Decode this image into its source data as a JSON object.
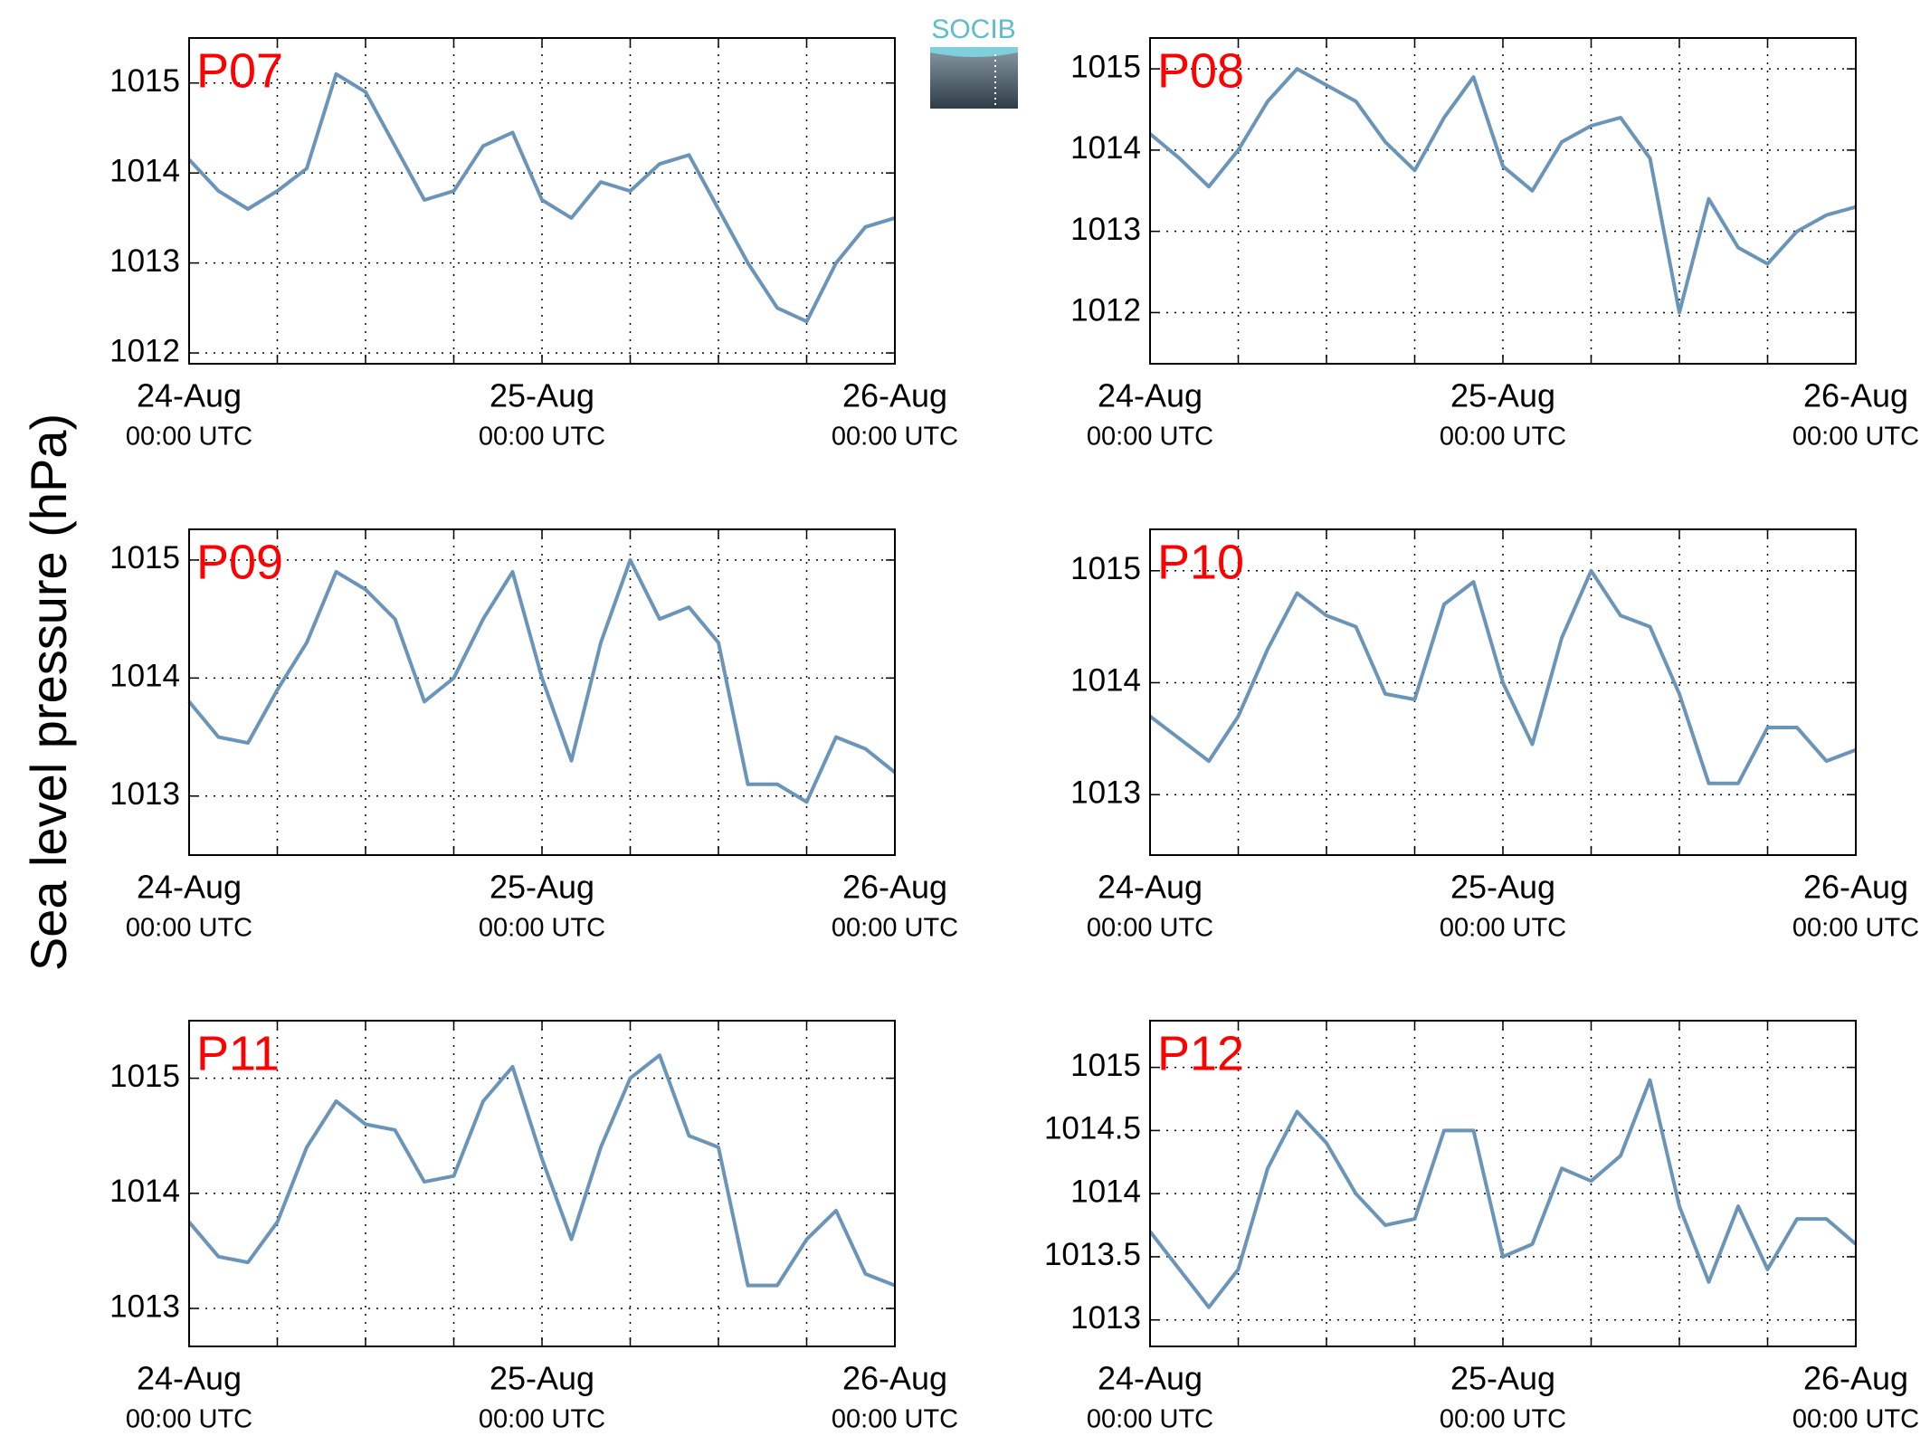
{
  "ylabel": "Sea level pressure (hPa)",
  "logo": "SOCIB",
  "chart_data": [
    {
      "type": "line",
      "title": "P07",
      "color": "#6a95b9",
      "grid": true,
      "x": [
        0,
        2,
        4,
        6,
        8,
        10,
        12,
        14,
        16,
        18,
        20,
        22,
        24,
        26,
        28,
        30,
        32,
        34,
        36,
        38,
        40,
        42,
        44,
        46,
        48
      ],
      "values": [
        1014.15,
        1013.8,
        1013.6,
        1013.8,
        1014.05,
        1015.1,
        1014.9,
        1014.3,
        1013.7,
        1013.8,
        1014.3,
        1014.45,
        1013.7,
        1013.5,
        1013.9,
        1013.8,
        1014.1,
        1014.2,
        1013.6,
        1013.0,
        1012.5,
        1012.35,
        1013.0,
        1013.4,
        1013.5
      ],
      "xlim": [
        0,
        48
      ],
      "ylim": [
        1011.88,
        1015.5
      ],
      "yticks": [
        1012,
        1013,
        1014,
        1015
      ],
      "xticks": [
        {
          "value": 0,
          "label": "24-Aug",
          "sublabel": "00:00 UTC"
        },
        {
          "value": 24,
          "label": "25-Aug",
          "sublabel": "00:00 UTC"
        },
        {
          "value": 48,
          "label": "26-Aug",
          "sublabel": "00:00 UTC"
        }
      ],
      "xminorticks": [
        6,
        12,
        18,
        30,
        36,
        42
      ]
    },
    {
      "type": "line",
      "title": "P08",
      "color": "#6a95b9",
      "grid": true,
      "x": [
        0,
        2,
        4,
        6,
        8,
        10,
        12,
        14,
        16,
        18,
        20,
        22,
        24,
        26,
        28,
        30,
        32,
        34,
        36,
        38,
        40,
        42,
        44,
        46,
        48
      ],
      "values": [
        1014.2,
        1013.9,
        1013.55,
        1014.0,
        1014.6,
        1015.0,
        1014.8,
        1014.6,
        1014.1,
        1013.75,
        1014.4,
        1014.9,
        1013.8,
        1013.5,
        1014.1,
        1014.3,
        1014.4,
        1013.9,
        1012.0,
        1013.4,
        1012.8,
        1012.6,
        1013.0,
        1013.2,
        1013.3
      ],
      "xlim": [
        0,
        48
      ],
      "ylim": [
        1011.37,
        1015.38
      ],
      "yticks": [
        1012,
        1013,
        1014,
        1015
      ],
      "xticks": [
        {
          "value": 0,
          "label": "24-Aug",
          "sublabel": "00:00 UTC"
        },
        {
          "value": 24,
          "label": "25-Aug",
          "sublabel": "00:00 UTC"
        },
        {
          "value": 48,
          "label": "26-Aug",
          "sublabel": "00:00 UTC"
        }
      ],
      "xminorticks": [
        6,
        12,
        18,
        30,
        36,
        42
      ]
    },
    {
      "type": "line",
      "title": "P09",
      "color": "#6a95b9",
      "grid": true,
      "x": [
        0,
        2,
        4,
        6,
        8,
        10,
        12,
        14,
        16,
        18,
        20,
        22,
        24,
        26,
        28,
        30,
        32,
        34,
        36,
        38,
        40,
        42,
        44,
        46,
        48
      ],
      "values": [
        1013.8,
        1013.5,
        1013.45,
        1013.9,
        1014.3,
        1014.9,
        1014.75,
        1014.5,
        1013.8,
        1014.0,
        1014.5,
        1014.9,
        1014.0,
        1013.3,
        1014.3,
        1015.0,
        1014.5,
        1014.6,
        1014.3,
        1013.1,
        1013.1,
        1012.95,
        1013.5,
        1013.4,
        1013.2
      ],
      "xlim": [
        0,
        48
      ],
      "ylim": [
        1012.5,
        1015.26
      ],
      "yticks": [
        1013,
        1014,
        1015
      ],
      "xticks": [
        {
          "value": 0,
          "label": "24-Aug",
          "sublabel": "00:00 UTC"
        },
        {
          "value": 24,
          "label": "25-Aug",
          "sublabel": "00:00 UTC"
        },
        {
          "value": 48,
          "label": "26-Aug",
          "sublabel": "00:00 UTC"
        }
      ],
      "xminorticks": [
        6,
        12,
        18,
        30,
        36,
        42
      ]
    },
    {
      "type": "line",
      "title": "P10",
      "color": "#6a95b9",
      "grid": true,
      "x": [
        0,
        2,
        4,
        6,
        8,
        10,
        12,
        14,
        16,
        18,
        20,
        22,
        24,
        26,
        28,
        30,
        32,
        34,
        36,
        38,
        40,
        42,
        44,
        46,
        48
      ],
      "values": [
        1013.7,
        1013.5,
        1013.3,
        1013.7,
        1014.3,
        1014.8,
        1014.6,
        1014.5,
        1013.9,
        1013.85,
        1014.7,
        1014.9,
        1014.0,
        1013.45,
        1014.4,
        1015.0,
        1014.6,
        1014.5,
        1013.9,
        1013.1,
        1013.1,
        1013.6,
        1013.6,
        1013.3,
        1013.4
      ],
      "xlim": [
        0,
        48
      ],
      "ylim": [
        1012.46,
        1015.37
      ],
      "yticks": [
        1013,
        1014,
        1015
      ],
      "xticks": [
        {
          "value": 0,
          "label": "24-Aug",
          "sublabel": "00:00 UTC"
        },
        {
          "value": 24,
          "label": "25-Aug",
          "sublabel": "00:00 UTC"
        },
        {
          "value": 48,
          "label": "26-Aug",
          "sublabel": "00:00 UTC"
        }
      ],
      "xminorticks": [
        6,
        12,
        18,
        30,
        36,
        42
      ]
    },
    {
      "type": "line",
      "title": "P11",
      "color": "#6a95b9",
      "grid": true,
      "x": [
        0,
        2,
        4,
        6,
        8,
        10,
        12,
        14,
        16,
        18,
        20,
        22,
        24,
        26,
        28,
        30,
        32,
        34,
        36,
        38,
        40,
        42,
        44,
        46,
        48
      ],
      "values": [
        1013.75,
        1013.45,
        1013.4,
        1013.75,
        1014.4,
        1014.8,
        1014.6,
        1014.55,
        1014.1,
        1014.15,
        1014.8,
        1015.1,
        1014.3,
        1013.6,
        1014.4,
        1015.0,
        1015.2,
        1014.5,
        1014.4,
        1013.2,
        1013.2,
        1013.6,
        1013.85,
        1013.3,
        1013.2
      ],
      "xlim": [
        0,
        48
      ],
      "ylim": [
        1012.67,
        1015.5
      ],
      "yticks": [
        1013,
        1014,
        1015
      ],
      "xticks": [
        {
          "value": 0,
          "label": "24-Aug",
          "sublabel": "00:00 UTC"
        },
        {
          "value": 24,
          "label": "25-Aug",
          "sublabel": "00:00 UTC"
        },
        {
          "value": 48,
          "label": "26-Aug",
          "sublabel": "00:00 UTC"
        }
      ],
      "xminorticks": [
        6,
        12,
        18,
        30,
        36,
        42
      ]
    },
    {
      "type": "line",
      "title": "P12",
      "color": "#6a95b9",
      "grid": true,
      "x": [
        0,
        2,
        4,
        6,
        8,
        10,
        12,
        14,
        16,
        18,
        20,
        22,
        24,
        26,
        28,
        30,
        32,
        34,
        36,
        38,
        40,
        42,
        44,
        46,
        48
      ],
      "values": [
        1013.7,
        1013.4,
        1013.1,
        1013.4,
        1014.2,
        1014.65,
        1014.4,
        1014.0,
        1013.75,
        1013.8,
        1014.5,
        1014.5,
        1013.5,
        1013.6,
        1014.2,
        1014.1,
        1014.3,
        1014.9,
        1013.9,
        1013.3,
        1013.9,
        1013.4,
        1013.8,
        1013.8,
        1013.6
      ],
      "xlim": [
        0,
        48
      ],
      "ylim": [
        1012.79,
        1015.37
      ],
      "yticks": [
        1013,
        1013.5,
        1014,
        1014.5,
        1015
      ],
      "xticks": [
        {
          "value": 0,
          "label": "24-Aug",
          "sublabel": "00:00 UTC"
        },
        {
          "value": 24,
          "label": "25-Aug",
          "sublabel": "00:00 UTC"
        },
        {
          "value": 48,
          "label": "26-Aug",
          "sublabel": "00:00 UTC"
        }
      ],
      "xminorticks": [
        6,
        12,
        18,
        30,
        36,
        42
      ]
    }
  ]
}
